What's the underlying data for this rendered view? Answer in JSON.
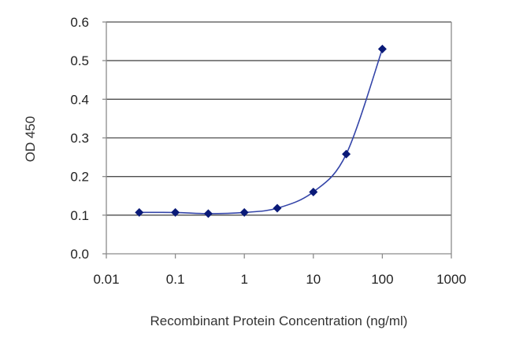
{
  "chart_data": {
    "type": "line",
    "title": "",
    "xlabel": "Recombinant Protein Concentration (ng/ml)",
    "ylabel": "OD 450",
    "x_scale": "log",
    "xlim": [
      0.01,
      1000
    ],
    "ylim": [
      0,
      0.6
    ],
    "x_ticks": [
      0.01,
      0.1,
      1,
      10,
      100,
      1000
    ],
    "x_tick_labels": [
      "0.01",
      "0.1",
      "1",
      "10",
      "100",
      "1000"
    ],
    "y_ticks": [
      0,
      0.1,
      0.2,
      0.3,
      0.4,
      0.5,
      0.6
    ],
    "y_tick_labels": [
      "0.0",
      "0.1",
      "0.2",
      "0.3",
      "0.4",
      "0.5",
      "0.6"
    ],
    "grid": "horizontal",
    "legend": "none",
    "series": [
      {
        "x": [
          0.03,
          0.1,
          0.3,
          1,
          3,
          10,
          30,
          100
        ],
        "y": [
          0.107,
          0.107,
          0.104,
          0.107,
          0.118,
          0.16,
          0.258,
          0.53
        ]
      }
    ],
    "colors": {
      "line": "#3344a8",
      "marker": "#0a1a78",
      "grid": "#4d4d4d",
      "axis": "#8c8c8c"
    }
  }
}
